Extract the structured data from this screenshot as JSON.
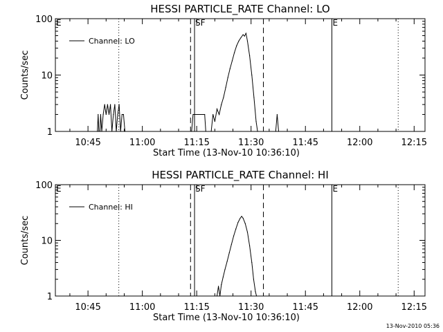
{
  "footer_stamp": "13-Nov-2010 05:36",
  "chart_data": [
    {
      "type": "line",
      "title": "HESSI PARTICLE_RATE Channel: LO",
      "xlabel": "Start Time (13-Nov-10 10:36:10)",
      "ylabel": "Counts/sec",
      "yscale": "log",
      "ylim": [
        1,
        100
      ],
      "xlim": [
        "10:36",
        "12:18"
      ],
      "x_ticks": [
        "10:45",
        "11:00",
        "11:15",
        "11:30",
        "11:45",
        "12:00",
        "12:15"
      ],
      "y_ticks": [
        "1",
        "10",
        "100"
      ],
      "legend": {
        "position": "top-left",
        "entries": [
          "Channel: LO"
        ]
      },
      "markers": [
        {
          "time": "10:53.5",
          "style": "dotted",
          "label": ""
        },
        {
          "time": "11:13.3",
          "style": "dashed",
          "label": ""
        },
        {
          "time": "11:14.4",
          "style": "solid",
          "label": "SF"
        },
        {
          "time": "11:33.4",
          "style": "dashed",
          "label": ""
        },
        {
          "time": "11:52.3",
          "style": "solid",
          "label": "E"
        },
        {
          "time": "12:10.6",
          "style": "dotted",
          "label": ""
        }
      ],
      "corner_labels": [
        {
          "text": "E",
          "time": "10:36"
        },
        {
          "text": "SF",
          "time": "11:14.4"
        },
        {
          "text": "E",
          "time": "11:52.3"
        }
      ],
      "series": [
        {
          "name": "Channel: LO",
          "points": [
            [
              "10:47.6",
              1
            ],
            [
              "10:47.8",
              2
            ],
            [
              "10:48.0",
              1
            ],
            [
              "10:48.3",
              1
            ],
            [
              "10:48.5",
              2
            ],
            [
              "10:48.8",
              1
            ],
            [
              "10:49.2",
              2
            ],
            [
              "10:49.6",
              3
            ],
            [
              "10:50.0",
              2
            ],
            [
              "10:50.4",
              3
            ],
            [
              "10:50.8",
              2
            ],
            [
              "10:51.2",
              3
            ],
            [
              "10:51.6",
              1
            ],
            [
              "10:52.0",
              2
            ],
            [
              "10:52.4",
              3
            ],
            [
              "10:52.8",
              1
            ],
            [
              "10:53.2",
              2
            ],
            [
              "10:53.6",
              3
            ],
            [
              "10:54.0",
              1
            ],
            [
              "10:54.4",
              2
            ],
            [
              "10:54.8",
              2
            ],
            [
              "10:55.2",
              1
            ],
            [
              "11:13.6",
              1
            ],
            [
              "11:14.0",
              2
            ],
            [
              "11:17.2",
              2
            ],
            [
              "11:17.5",
              1
            ],
            [
              "11:19.0",
              1
            ],
            [
              "11:19.5",
              2
            ],
            [
              "11:20.0",
              1.5
            ],
            [
              "11:20.6",
              2.5
            ],
            [
              "11:21.2",
              2
            ],
            [
              "11:21.8",
              3
            ],
            [
              "11:22.4",
              4
            ],
            [
              "11:23.0",
              6
            ],
            [
              "11:23.6",
              9
            ],
            [
              "11:24.2",
              13
            ],
            [
              "11:24.8",
              18
            ],
            [
              "11:25.4",
              25
            ],
            [
              "11:26.0",
              33
            ],
            [
              "11:26.6",
              40
            ],
            [
              "11:27.2",
              46
            ],
            [
              "11:27.8",
              52
            ],
            [
              "11:28.2",
              49
            ],
            [
              "11:28.6",
              55
            ],
            [
              "11:29.0",
              40
            ],
            [
              "11:29.6",
              22
            ],
            [
              "11:30.2",
              10
            ],
            [
              "11:30.8",
              4
            ],
            [
              "11:31.4",
              1.5
            ],
            [
              "11:31.8",
              1
            ],
            [
              "11:36.8",
              1
            ],
            [
              "11:37.2",
              2
            ],
            [
              "11:37.6",
              1
            ]
          ]
        }
      ]
    },
    {
      "type": "line",
      "title": "HESSI PARTICLE_RATE Channel: HI",
      "xlabel": "Start Time (13-Nov-10 10:36:10)",
      "ylabel": "Counts/sec",
      "yscale": "log",
      "ylim": [
        1,
        100
      ],
      "xlim": [
        "10:36",
        "12:18"
      ],
      "x_ticks": [
        "10:45",
        "11:00",
        "11:15",
        "11:30",
        "11:45",
        "12:00",
        "12:15"
      ],
      "y_ticks": [
        "1",
        "10",
        "100"
      ],
      "legend": {
        "position": "top-left",
        "entries": [
          "Channel: HI"
        ]
      },
      "markers": [
        {
          "time": "10:53.5",
          "style": "dotted",
          "label": ""
        },
        {
          "time": "11:13.3",
          "style": "dashed",
          "label": ""
        },
        {
          "time": "11:14.4",
          "style": "solid",
          "label": "SF"
        },
        {
          "time": "11:33.4",
          "style": "dashed",
          "label": ""
        },
        {
          "time": "11:52.3",
          "style": "solid",
          "label": "E"
        },
        {
          "time": "12:10.6",
          "style": "dotted",
          "label": ""
        }
      ],
      "corner_labels": [
        {
          "text": "E",
          "time": "10:36"
        },
        {
          "text": "SF",
          "time": "11:14.4"
        },
        {
          "text": "E",
          "time": "11:52.3"
        }
      ],
      "series": [
        {
          "name": "Channel: HI",
          "points": [
            [
              "11:20.6",
              1
            ],
            [
              "11:21.0",
              1.5
            ],
            [
              "11:21.4",
              1
            ],
            [
              "11:21.8",
              1.6
            ],
            [
              "11:22.3",
              2.2
            ],
            [
              "11:22.8",
              3
            ],
            [
              "11:23.4",
              4.2
            ],
            [
              "11:24.0",
              6
            ],
            [
              "11:24.6",
              8.5
            ],
            [
              "11:25.2",
              12
            ],
            [
              "11:25.8",
              16
            ],
            [
              "11:26.4",
              21
            ],
            [
              "11:27.0",
              25
            ],
            [
              "11:27.4",
              27
            ],
            [
              "11:27.8",
              25
            ],
            [
              "11:28.4",
              20
            ],
            [
              "11:29.0",
              14
            ],
            [
              "11:29.6",
              8
            ],
            [
              "11:30.2",
              4
            ],
            [
              "11:30.7",
              2
            ],
            [
              "11:31.2",
              1.2
            ],
            [
              "11:31.5",
              1
            ]
          ]
        }
      ]
    }
  ]
}
